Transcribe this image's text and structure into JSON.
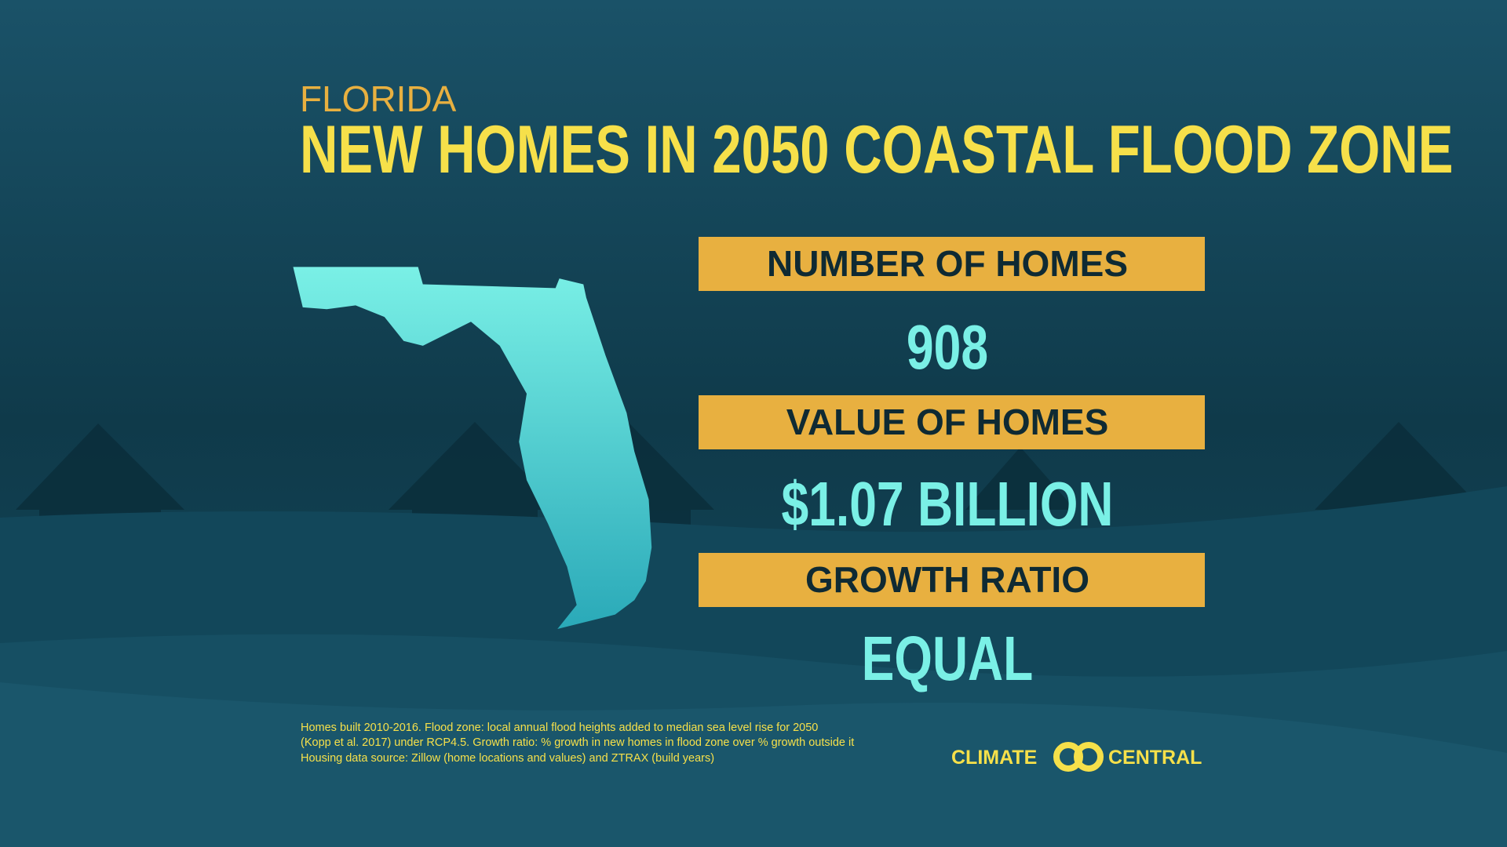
{
  "header": {
    "state": "FLORIDA",
    "title": "NEW HOMES IN 2050 COASTAL FLOOD ZONE"
  },
  "stats": [
    {
      "label": "NUMBER OF HOMES",
      "value": "908"
    },
    {
      "label": "VALUE OF HOMES",
      "value": "$1.07 BILLION"
    },
    {
      "label": "GROWTH RATIO",
      "value": "EQUAL"
    }
  ],
  "footnote": [
    "Homes built 2010-2016. Flood zone: local annual flood heights added to median sea level rise for 2050",
    "(Kopp et al. 2017) under RCP4.5. Growth ratio: % growth in new homes in flood zone over % growth outside it",
    "Housing data source: Zillow (home locations and values) and ZTRAX (build years)"
  ],
  "logo": {
    "left": "CLIMATE",
    "right": "CENTRAL"
  }
}
